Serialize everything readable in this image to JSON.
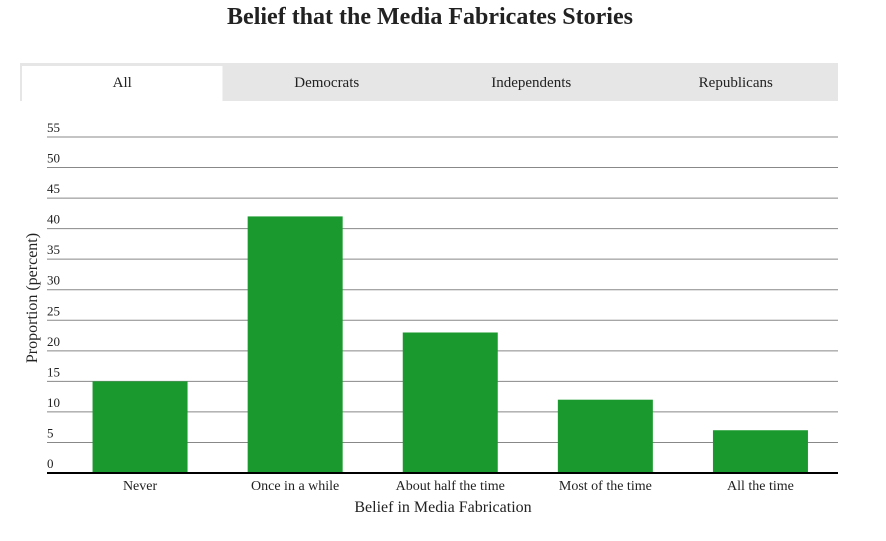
{
  "tabs": [
    "All",
    "Democrats",
    "Independents",
    "Republicans"
  ],
  "active_tab": 0,
  "chart_data": {
    "type": "bar",
    "title": "Belief that the Media Fabricates Stories",
    "x_label": "Belief in Media Fabrication",
    "y_label": "Proportion (percent)",
    "categories": [
      "Never",
      "Once in a while",
      "About half the time",
      "Most of the time",
      "All the time"
    ],
    "values": [
      15,
      42,
      23,
      12,
      7
    ],
    "color": "#1a9a2e",
    "ylim": [
      0,
      55
    ],
    "yticks": [
      0,
      5,
      10,
      15,
      20,
      25,
      30,
      35,
      40,
      45,
      50,
      55
    ],
    "grid": true
  }
}
